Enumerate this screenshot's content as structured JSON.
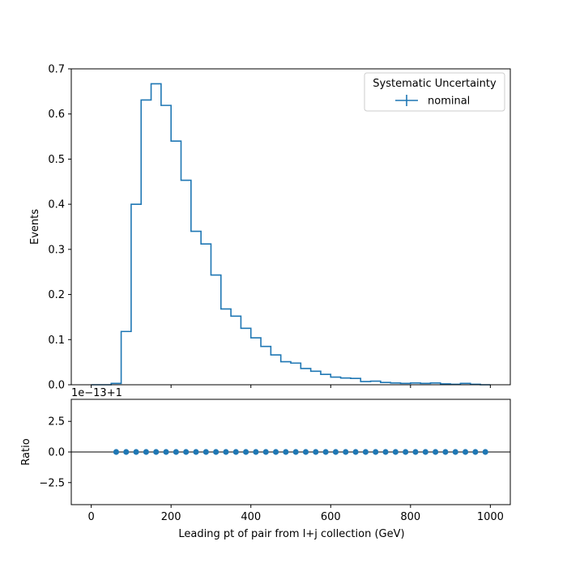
{
  "chart_data": [
    {
      "type": "step",
      "panel": "main",
      "ylabel": "Events",
      "xlim": [
        -50,
        1050
      ],
      "ylim": [
        0,
        0.7
      ],
      "yticks": [
        0.0,
        0.1,
        0.2,
        0.3,
        0.4,
        0.5,
        0.6,
        0.7
      ],
      "ytick_labels": [
        "0.0",
        "0.1",
        "0.2",
        "0.3",
        "0.4",
        "0.5",
        "0.6",
        "0.7"
      ],
      "bin_edges": [
        0,
        25,
        50,
        75,
        100,
        125,
        150,
        175,
        200,
        225,
        250,
        275,
        300,
        325,
        350,
        375,
        400,
        425,
        450,
        475,
        500,
        525,
        550,
        575,
        600,
        625,
        650,
        675,
        700,
        725,
        750,
        775,
        800,
        825,
        850,
        875,
        900,
        925,
        950,
        975,
        1000
      ],
      "series": [
        {
          "name": "nominal",
          "color": "#1f77b4",
          "values": [
            0.0,
            0.0,
            0.003,
            0.118,
            0.4,
            0.631,
            0.667,
            0.619,
            0.54,
            0.453,
            0.34,
            0.312,
            0.243,
            0.168,
            0.152,
            0.125,
            0.104,
            0.085,
            0.066,
            0.051,
            0.048,
            0.036,
            0.03,
            0.023,
            0.017,
            0.015,
            0.014,
            0.007,
            0.008,
            0.005,
            0.004,
            0.003,
            0.004,
            0.003,
            0.004,
            0.002,
            0.001,
            0.003,
            0.001,
            0.0
          ]
        }
      ],
      "legend": {
        "title": "Systematic Uncertainty",
        "entries": [
          "nominal"
        ],
        "placement": "top-right"
      }
    },
    {
      "type": "scatter",
      "panel": "ratio",
      "ylabel": "Ratio",
      "xlabel": "Leading pt of pair from l+j collection (GeV)",
      "offset_label": "1e−13+1",
      "xlim": [
        -50,
        1050
      ],
      "ylim": [
        -4.3,
        4.3
      ],
      "xticks": [
        0,
        200,
        400,
        600,
        800,
        1000
      ],
      "xtick_labels": [
        "0",
        "200",
        "400",
        "600",
        "800",
        "1000"
      ],
      "yticks": [
        -2.5,
        0.0,
        2.5
      ],
      "ytick_labels": [
        "−2.5",
        "0.0",
        "2.5"
      ],
      "reference_line": 0.0,
      "series": [
        {
          "name": "",
          "color": "#1f77b4",
          "x": [
            62.5,
            87.5,
            112.5,
            137.5,
            162.5,
            187.5,
            212.5,
            237.5,
            262.5,
            287.5,
            312.5,
            337.5,
            362.5,
            387.5,
            412.5,
            437.5,
            462.5,
            487.5,
            512.5,
            537.5,
            562.5,
            587.5,
            612.5,
            637.5,
            662.5,
            687.5,
            712.5,
            737.5,
            762.5,
            787.5,
            812.5,
            837.5,
            862.5,
            887.5,
            912.5,
            937.5,
            962.5,
            987.5
          ],
          "y": [
            0.0,
            0.0,
            0.0,
            0.0,
            0.0,
            0.0,
            0.0,
            0.0,
            0.0,
            0.0,
            0.0,
            0.0,
            0.0,
            0.0,
            0.0,
            0.0,
            0.0,
            0.0,
            0.0,
            0.0,
            0.0,
            0.0,
            0.0,
            0.0,
            0.0,
            0.0,
            0.0,
            0.0,
            0.0,
            0.0,
            0.0,
            0.0,
            0.0,
            0.0,
            0.0,
            0.0,
            0.0,
            0.0
          ]
        }
      ]
    }
  ]
}
